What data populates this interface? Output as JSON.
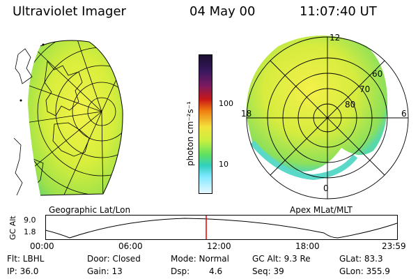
{
  "header": {
    "instrument": "Ultraviolet Imager",
    "date": "04 May 00",
    "time": "11:07:40 UT"
  },
  "left_panel": {
    "caption": "Geographic Lat/Lon"
  },
  "right_panel": {
    "caption": "Apex MLat/MLT",
    "mlt_labels": [
      "12",
      "18",
      "6",
      "0"
    ],
    "mlat_labels": [
      "60",
      "70",
      "80"
    ]
  },
  "colorbar": {
    "unit_label": "photon cm⁻²s⁻¹",
    "tick_labels": [
      "100",
      "10"
    ]
  },
  "timeline": {
    "axis_label": "GC Alt",
    "y_labels": [
      "9.0",
      "1.8"
    ],
    "x_labels": [
      "00:00",
      "06:00",
      "12:00",
      "18:00",
      "23:59"
    ],
    "marker_color": "#e00000"
  },
  "status": {
    "flt": "Flt: LBHL",
    "ip": "IP: 36.0",
    "door": "Door: Closed",
    "gain": "Gain: 13",
    "mode": "Mode: Normal",
    "dsp_label": "Dsp:",
    "dsp_value": "4.6",
    "gc_alt": "GC Alt: 9.3 Re",
    "seq": "Seq: 39",
    "glat": "GLat: 83.3",
    "glon": "GLon: 355.9"
  }
}
